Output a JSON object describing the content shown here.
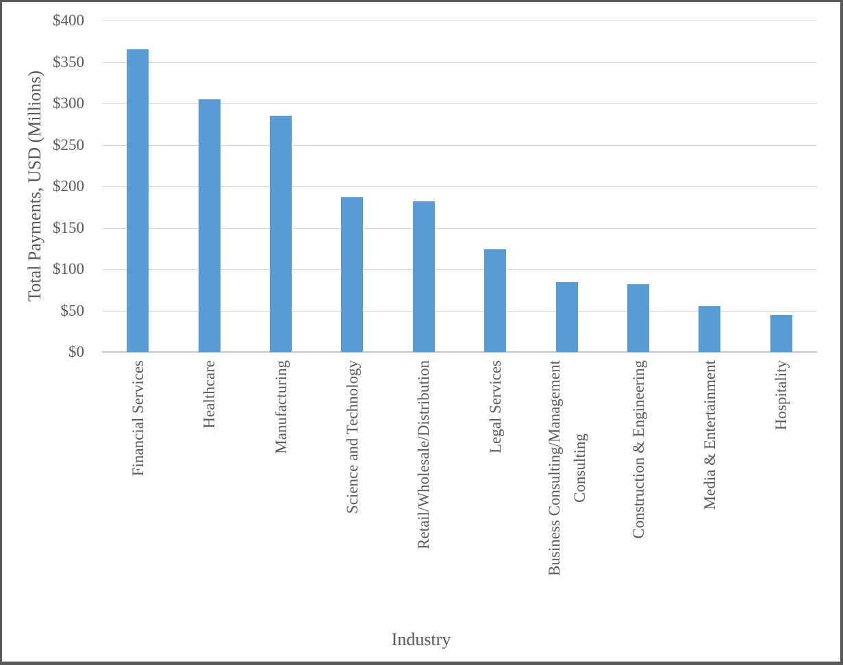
{
  "chart_data": {
    "type": "bar",
    "title": "",
    "xlabel": "Industry",
    "ylabel": "Total Payments, USD (Millions)",
    "categories": [
      "Financial Services",
      "Healthcare",
      "Manufacturing",
      "Science and Technology",
      "Retail/Wholesale/Distribution",
      "Legal Services",
      "Business Consulting/Management\nConsulting",
      "Construction & Engineering",
      "Media & Entertainment",
      "Hospitality"
    ],
    "values": [
      365,
      305,
      285,
      187,
      182,
      124,
      84,
      82,
      55,
      45
    ],
    "ylim": [
      0,
      400
    ],
    "ytick_step": 50,
    "ytick_labels": [
      "$0",
      "$50",
      "$100",
      "$150",
      "$200",
      "$250",
      "$300",
      "$350",
      "$400"
    ],
    "grid": "horizontal gridlines on",
    "legend": "none"
  },
  "colors": {
    "bar": "#5B9BD5",
    "text": "#595959",
    "gridline": "#D9D9D9",
    "axis_line": "#C5C5C5",
    "frame_border": "#595959",
    "background": "#FFFFFF"
  }
}
